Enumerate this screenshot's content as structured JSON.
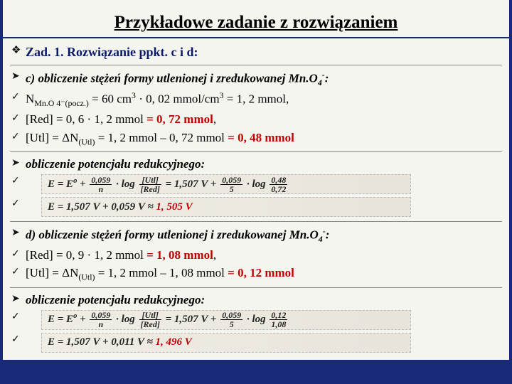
{
  "title": "Przykładowe zadanie z rozwiązaniem",
  "heading": "Zad. 1. Rozwiązanie ppkt. c i d:",
  "sec_c_head": "c) obliczenie stężeń formy utlenionej i zredukowanej Mn.O",
  "sec_c_head_sub": "4",
  "sec_c_head_tail": ":",
  "c1_a": "N",
  "c1_sub": "Mn.O 4⁻(pocz.)",
  "c1_b": " = 60 cm",
  "c1_c": " · 0, 02 mmol/cm",
  "c1_d": " = 1, 2 mmol,",
  "c2_a": "[Red] = 0, 6 · 1, 2 mmol  ",
  "c2_b": "= 0, 72 mmol",
  "c3_a": "[Utl] = ΔN",
  "c3_sub": "(Utl)",
  "c3_b": " = 1, 2 mmol – 0, 72 mmol ",
  "c3_c": "= 0, 48 mmol",
  "pot_head": "obliczenie potencjału redukcyjnego:",
  "eq1_lhs": "E = E",
  "eq1_sup": "o",
  "eq1_a": " + ",
  "eq1_frac1_num": "0,059",
  "eq1_frac1_den": "n",
  "eq1_b": " · log ",
  "eq1_frac2_num": "[Utl]",
  "eq1_frac2_den": "[Red]",
  "eq1_c": " = 1,507 V + ",
  "eq1_frac3_num": "0,059",
  "eq1_frac3_den": "5",
  "eq1_d": " · log ",
  "eq1_frac4_num": "0,48",
  "eq1_frac4_den": "0,72",
  "eq2_a": "E = 1,507 V + 0,059 V ≈ ",
  "eq2_b": "1, 505 V",
  "sec_d_head": "d) obliczenie stężeń formy utlenionej i zredukowanej Mn.O",
  "sec_d_head_sub": "4",
  "sec_d_head_tail": ":",
  "d1_a": "[Red] = 0, 9 · 1, 2 mmol  ",
  "d1_b": "= 1, 08 mmol",
  "d2_a": "[Utl] = ΔN",
  "d2_sub": "(Utl)",
  "d2_b": " = 1, 2 mmol – 1, 08 mmol ",
  "d2_c": "= 0, 12 mmol",
  "eq3_frac4_num": "0,12",
  "eq3_frac4_den": "1,08",
  "eq4_a": "E = 1,507 V + 0,011 V ≈ ",
  "eq4_b": "1, 496 V",
  "style": {
    "bg": "#1a2a7a",
    "panel": "#f5f5f0",
    "red": "#c00000",
    "title_fontsize": 25,
    "body_fontsize": 17,
    "heading_fontsize": 18
  }
}
